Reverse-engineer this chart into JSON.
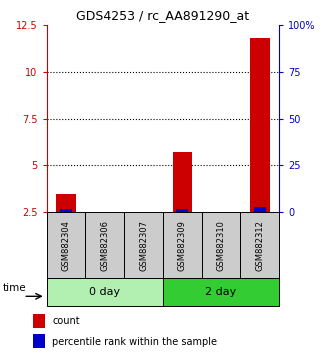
{
  "title": "GDS4253 / rc_AA891290_at",
  "samples": [
    "GSM882304",
    "GSM882306",
    "GSM882307",
    "GSM882309",
    "GSM882310",
    "GSM882312"
  ],
  "red_values": [
    3.5,
    2.5,
    2.5,
    5.7,
    2.5,
    11.8
  ],
  "blue_values": [
    2.0,
    0.0,
    0.0,
    2.0,
    0.0,
    3.0
  ],
  "ylim_left": [
    2.5,
    12.5
  ],
  "ylim_right": [
    0,
    100
  ],
  "yticks_left": [
    2.5,
    5.0,
    7.5,
    10.0,
    12.5
  ],
  "yticks_right": [
    0,
    25,
    50,
    75,
    100
  ],
  "ytick_labels_left": [
    "2.5",
    "5",
    "7.5",
    "10",
    "12.5"
  ],
  "ytick_labels_right": [
    "0",
    "25",
    "50",
    "75",
    "100%"
  ],
  "groups": [
    {
      "label": "0 day",
      "indices": [
        0,
        1,
        2
      ],
      "color": "#b2f0b2"
    },
    {
      "label": "2 day",
      "indices": [
        3,
        4,
        5
      ],
      "color": "#33cc33"
    }
  ],
  "red_color": "#cc0000",
  "blue_color": "#0000cc",
  "sample_box_color": "#cccccc",
  "legend_red": "count",
  "legend_blue": "percentile rank within the sample",
  "time_label": "time",
  "baseline": 2.5,
  "title_fontsize": 9,
  "tick_fontsize": 7,
  "sample_fontsize": 6,
  "group_fontsize": 8,
  "legend_fontsize": 7
}
